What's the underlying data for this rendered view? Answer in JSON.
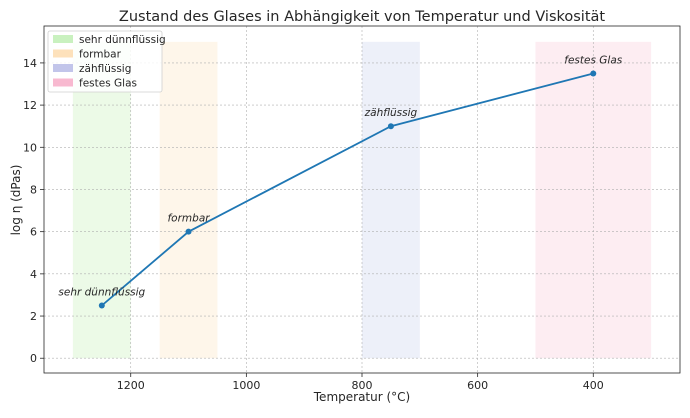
{
  "chart_data": {
    "type": "line",
    "title": "Zustand des Glases in Abhängigkeit von Temperatur und Viskosität",
    "xlabel": "Temperatur (°C)",
    "ylabel": "log η (dPas)",
    "xlim": [
      1350,
      250
    ],
    "ylim": [
      -0.7,
      15.75
    ],
    "x_reversed": true,
    "grid": true,
    "xticks": [
      1200,
      1000,
      800,
      600,
      400
    ],
    "yticks": [
      0,
      2,
      4,
      6,
      8,
      10,
      12,
      14
    ],
    "legend_placement": "top-left",
    "line_color": "#1f77b4",
    "series": [
      {
        "x": [
          1250,
          1100,
          750,
          400
        ],
        "y": [
          2.5,
          6,
          11,
          13.5
        ]
      }
    ],
    "annotations": [
      {
        "text": "sehr dünnflüssig",
        "x": 1250,
        "y": 2.5
      },
      {
        "text": "formbar",
        "x": 1100,
        "y": 6
      },
      {
        "text": "zähflüssig",
        "x": 750,
        "y": 11
      },
      {
        "text": "festes Glas",
        "x": 400,
        "y": 13.5
      }
    ],
    "regions": [
      {
        "name": "sehr dünnflüssig",
        "x_from": 1300,
        "x_to": 1200,
        "y_from": 0,
        "y_to": 15,
        "color": "#b9eeaa",
        "legend_color": "#c9f1bf"
      },
      {
        "name": "formbar",
        "x_from": 1150,
        "x_to": 1050,
        "y_from": 0,
        "y_to": 15,
        "color": "#fde0b2",
        "legend_color": "#fde1bb"
      },
      {
        "name": "zähflüssig",
        "x_from": 800,
        "x_to": 700,
        "y_from": 0,
        "y_to": 15,
        "color": "#c0c8e8",
        "legend_color": "#c2c5ea"
      },
      {
        "name": "festes Glas",
        "x_from": 500,
        "x_to": 300,
        "y_from": 0,
        "y_to": 15,
        "color": "#f9bdd2",
        "legend_color": "#f8b9d0"
      }
    ]
  }
}
